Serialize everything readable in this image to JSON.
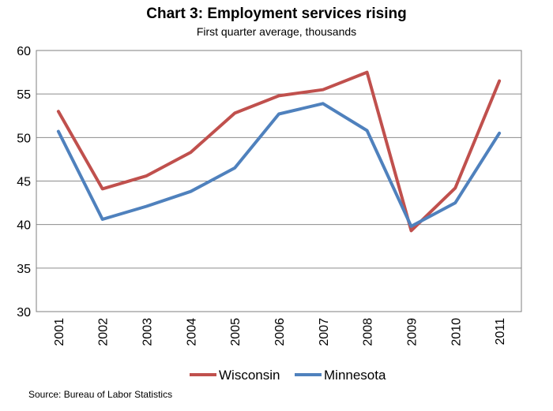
{
  "chart_data": {
    "type": "line",
    "title": "Chart 3: Employment services rising",
    "subtitle": "First quarter average, thousands",
    "categories": [
      "2001",
      "2002",
      "2003",
      "2004",
      "2005",
      "2006",
      "2007",
      "2008",
      "2009",
      "2010",
      "2011"
    ],
    "series": [
      {
        "name": "Wisconsin",
        "color": "#c0504d",
        "values": [
          53.0,
          44.1,
          45.6,
          48.3,
          52.8,
          54.8,
          55.5,
          57.5,
          39.3,
          44.2,
          56.5
        ]
      },
      {
        "name": "Minnesota",
        "color": "#4f81bd",
        "values": [
          50.7,
          40.6,
          42.1,
          43.8,
          46.5,
          52.7,
          53.9,
          50.8,
          39.8,
          42.5,
          50.5
        ]
      }
    ],
    "ylim": [
      30,
      60
    ],
    "yticks": [
      "30",
      "35",
      "40",
      "45",
      "50",
      "55",
      "60"
    ],
    "grid": true,
    "legend": "bottom",
    "source": "Source: Bureau of Labor Statistics"
  }
}
